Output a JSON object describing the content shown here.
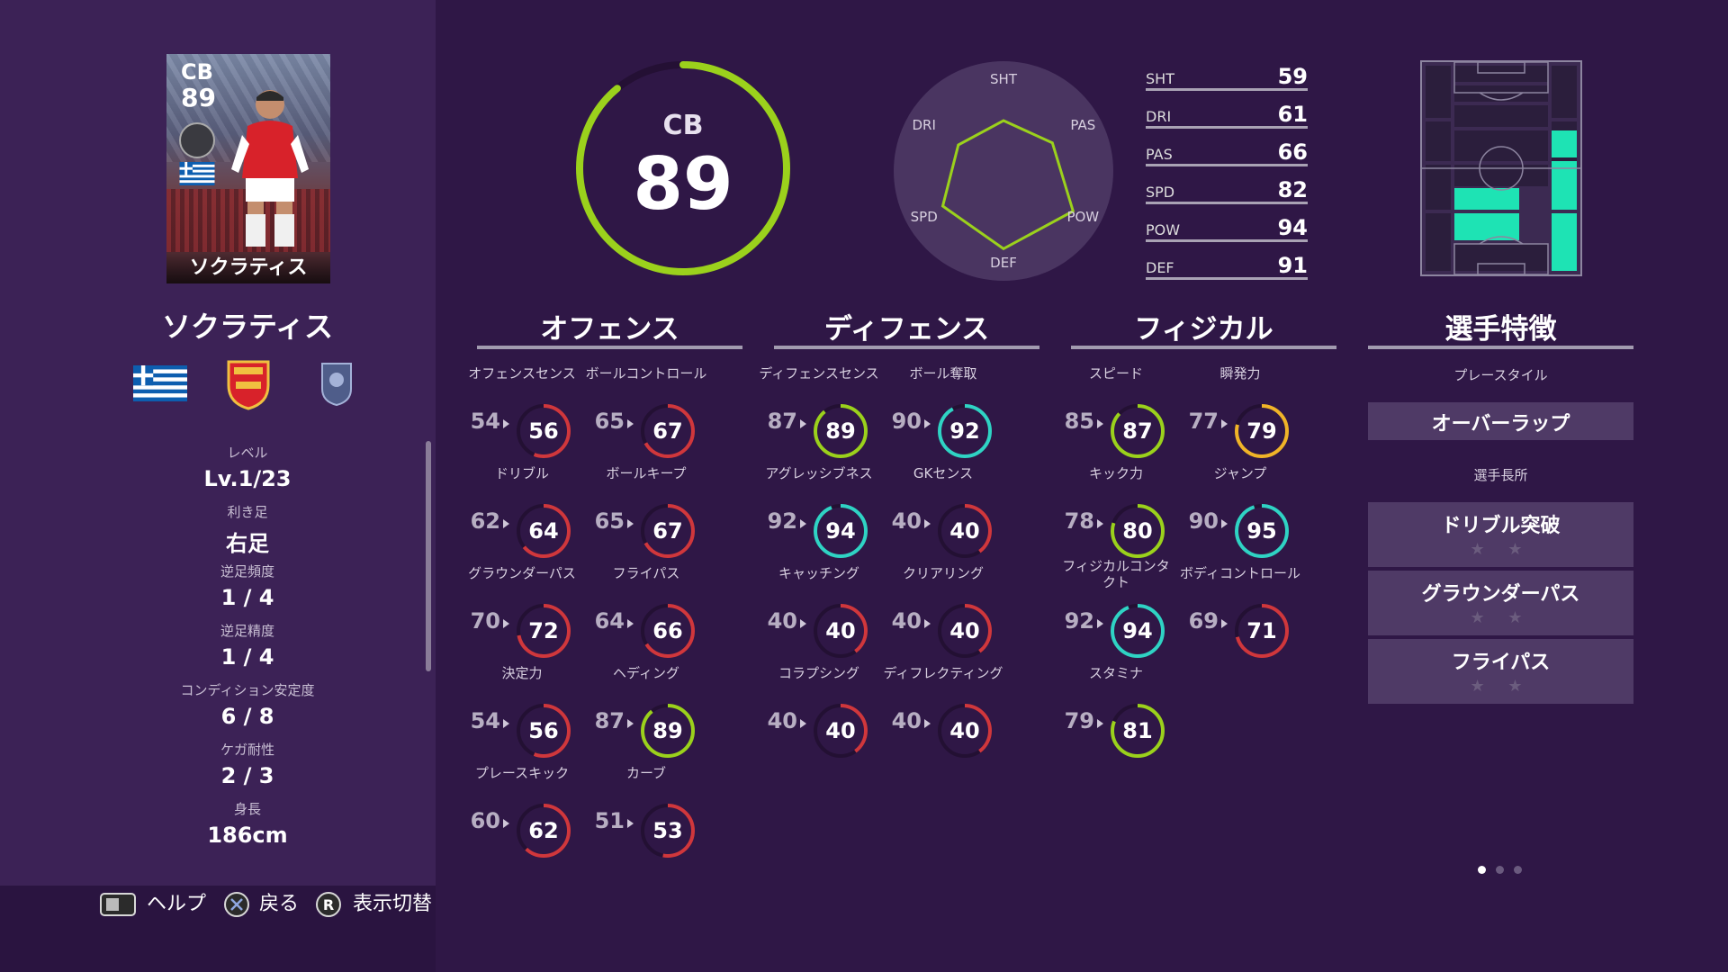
{
  "player": {
    "card_position": "CB",
    "card_rating": "89",
    "card_name": "ソクラティス",
    "name": "ソクラティス",
    "info": [
      {
        "label": "レベル",
        "value": "Lv.1/23"
      },
      {
        "label": "利き足",
        "value": "右足"
      },
      {
        "label": "逆足頻度",
        "value": "1 / 4"
      },
      {
        "label": "逆足精度",
        "value": "1 / 4"
      },
      {
        "label": "コンディション安定度",
        "value": "6 / 8"
      },
      {
        "label": "ケガ耐性",
        "value": "2 / 3"
      },
      {
        "label": "身長",
        "value": "186cm"
      }
    ]
  },
  "footer": {
    "help_label": "ヘルプ",
    "back_label": "戻る",
    "toggle_label": "表示切替",
    "toggle_key": "R"
  },
  "overall": {
    "position": "CB",
    "value": "89",
    "fraction": 0.89
  },
  "radar": {
    "axes": [
      "SHT",
      "PAS",
      "POW",
      "DEF",
      "SPD",
      "DRI"
    ],
    "values": [
      59,
      66,
      94,
      91,
      82,
      61
    ]
  },
  "summary": [
    {
      "label": "SHT",
      "value": "59"
    },
    {
      "label": "DRI",
      "value": "61"
    },
    {
      "label": "PAS",
      "value": "66"
    },
    {
      "label": "SPD",
      "value": "82"
    },
    {
      "label": "POW",
      "value": "94"
    },
    {
      "label": "DEF",
      "value": "91"
    }
  ],
  "sections": {
    "offense": "オフェンス",
    "defense": "ディフェンス",
    "physical": "フィジカル",
    "traits": "選手特徴"
  },
  "stats": [
    {
      "label": "オフェンスセンス",
      "base": "54",
      "value": "56"
    },
    {
      "label": "ボールコントロール",
      "base": "65",
      "value": "67"
    },
    {
      "label": "ドリブル",
      "base": "62",
      "value": "64"
    },
    {
      "label": "ボールキープ",
      "base": "65",
      "value": "67"
    },
    {
      "label": "グラウンダーパス",
      "base": "70",
      "value": "72"
    },
    {
      "label": "フライパス",
      "base": "64",
      "value": "66"
    },
    {
      "label": "決定力",
      "base": "54",
      "value": "56"
    },
    {
      "label": "ヘディング",
      "base": "87",
      "value": "89"
    },
    {
      "label": "プレースキック",
      "base": "60",
      "value": "62"
    },
    {
      "label": "カーブ",
      "base": "51",
      "value": "53"
    },
    {
      "label": "ディフェンスセンス",
      "base": "87",
      "value": "89"
    },
    {
      "label": "ボール奪取",
      "base": "90",
      "value": "92"
    },
    {
      "label": "アグレッシブネス",
      "base": "92",
      "value": "94"
    },
    {
      "label": "GKセンス",
      "base": "40",
      "value": "40"
    },
    {
      "label": "キャッチング",
      "base": "40",
      "value": "40"
    },
    {
      "label": "クリアリング",
      "base": "40",
      "value": "40"
    },
    {
      "label": "コラプシング",
      "base": "40",
      "value": "40"
    },
    {
      "label": "ディフレクティング",
      "base": "40",
      "value": "40"
    },
    {
      "label": "スピード",
      "base": "85",
      "value": "87"
    },
    {
      "label": "瞬発力",
      "base": "77",
      "value": "79"
    },
    {
      "label": "キック力",
      "base": "78",
      "value": "80"
    },
    {
      "label": "ジャンプ",
      "base": "90",
      "value": "95"
    },
    {
      "label": "フィジカルコンタクト",
      "base": "92",
      "value": "94"
    },
    {
      "label": "ボディコントロール",
      "base": "69",
      "value": "71"
    },
    {
      "label": "スタミナ",
      "base": "79",
      "value": "81"
    }
  ],
  "traits": {
    "play_style_label": "プレースタイル",
    "play_style": "オーバーラップ",
    "skills_label": "選手長所",
    "skills": [
      {
        "name": "ドリブル突破",
        "stars": "★ ★"
      },
      {
        "name": "グラウンダーパス",
        "stars": "★ ★"
      },
      {
        "name": "フライパス",
        "stars": "★ ★"
      }
    ]
  },
  "colors": {
    "background": "#2f1746",
    "panel": "#3c2256",
    "ring_green": "#9bd11c",
    "ring_yellow": "#f0b428",
    "ring_red": "#d0373c",
    "ring_cyan": "#2fd3c4",
    "pitch_highlight": "#1ee3b4"
  },
  "icons": {
    "help": "touchpad-icon",
    "back": "cross-button-icon",
    "toggle": "r-button-icon"
  }
}
